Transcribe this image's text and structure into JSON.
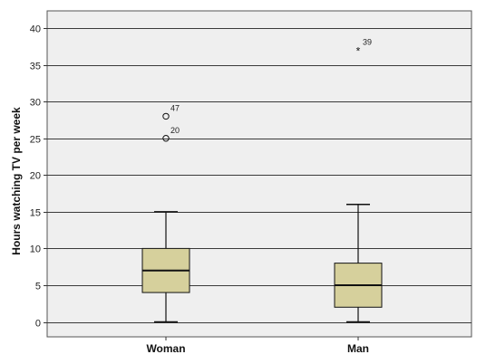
{
  "chart_data": {
    "type": "boxplot",
    "title": "",
    "xlabel": "",
    "ylabel": "Hours watching TV per week",
    "ylim": [
      -2,
      42
    ],
    "yticks": [
      0,
      5,
      10,
      15,
      20,
      25,
      30,
      35,
      40
    ],
    "grid": "horizontal",
    "colors": {
      "plot_background": "#efefef",
      "box_fill": "#d6d09c",
      "line": "#111111",
      "grid": "#3a3a3a"
    },
    "categories": [
      "Woman",
      "Man"
    ],
    "series": [
      {
        "name": "Woman",
        "min": 0,
        "q1": 4,
        "median": 7,
        "q3": 10,
        "max": 15,
        "outliers": [
          {
            "value": 28,
            "label": "47",
            "marker": "circle"
          },
          {
            "value": 25,
            "label": "20",
            "marker": "circle"
          }
        ]
      },
      {
        "name": "Man",
        "min": 0,
        "q1": 2,
        "median": 5,
        "q3": 8,
        "max": 16,
        "outliers": [
          {
            "value": 37,
            "label": "39",
            "marker": "star"
          }
        ]
      }
    ]
  }
}
